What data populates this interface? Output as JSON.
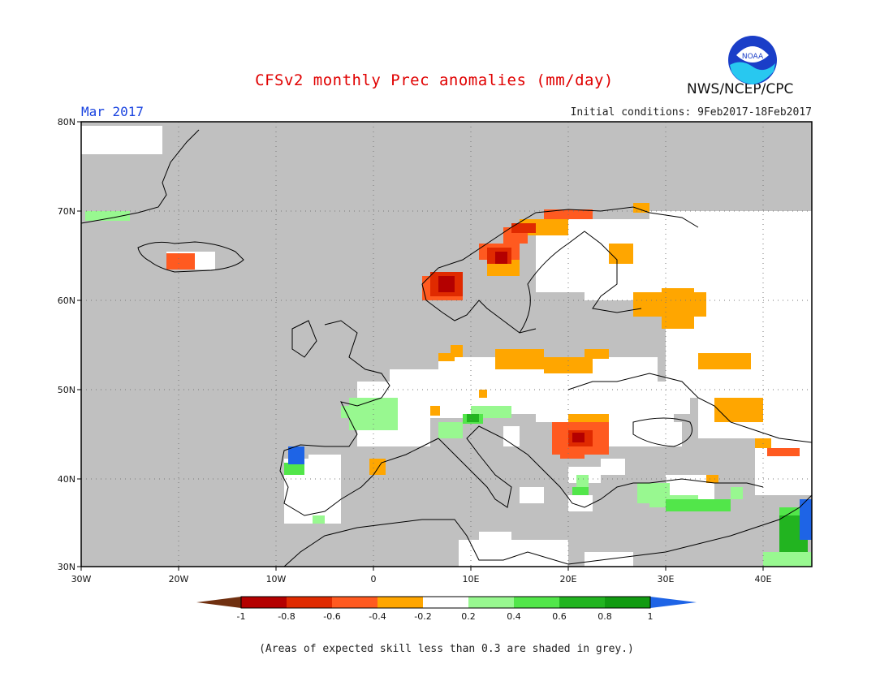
{
  "header": {
    "title": "CFSv2 monthly Prec anomalies (mm/day)",
    "month": "Mar 2017",
    "initial_conditions": "Initial conditions: 9Feb2017-18Feb2017",
    "org": "NWS/NCEP/CPC",
    "logo_text": "NOAA"
  },
  "map": {
    "lat_labels": [
      "80N",
      "70N",
      "60N",
      "50N",
      "40N",
      "30N"
    ],
    "lon_labels": [
      "30W",
      "20W",
      "10W",
      "0",
      "10E",
      "20E",
      "30E",
      "40E"
    ],
    "background": "#c0c0c0",
    "ocean_note": "grey = skill < 0.3"
  },
  "colorbar": {
    "labels": [
      "-1",
      "-0.8",
      "-0.6",
      "-0.4",
      "-0.2",
      "0.2",
      "0.4",
      "0.6",
      "0.8",
      "1"
    ],
    "colors": [
      "#703010",
      "#b40000",
      "#e02a00",
      "#ff5a20",
      "#ffa600",
      "#ffffff",
      "#98f890",
      "#52e64a",
      "#22b420",
      "#119b11",
      "#1e64e6"
    ]
  },
  "footnote": "(Areas of expected skill less than 0.3 are shaded in grey.)"
}
